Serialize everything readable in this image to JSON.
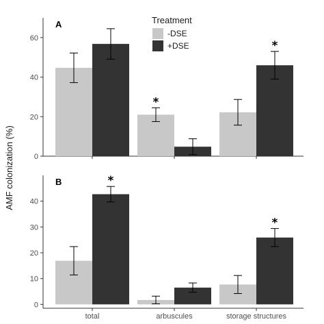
{
  "ylabel": "AMF colonization (%)",
  "legend": {
    "title": "Treatment",
    "entries": [
      {
        "label": "-DSE",
        "color": "#c8c8c8"
      },
      {
        "label": "+DSE",
        "color": "#333333"
      }
    ]
  },
  "chart_data": [
    {
      "type": "bar",
      "panel": "A",
      "categories": [
        "total",
        "arbuscules",
        "storage structures"
      ],
      "series": [
        {
          "name": "-DSE",
          "color": "#c8c8c8",
          "values": [
            44.7,
            21.0,
            22.2
          ],
          "errors": [
            7.5,
            3.5,
            6.5
          ]
        },
        {
          "name": "+DSE",
          "color": "#333333",
          "values": [
            56.8,
            4.8,
            46.0
          ],
          "errors": [
            7.7,
            4.0,
            7.0
          ]
        }
      ],
      "significance": [
        {
          "category": "arbuscules",
          "series": "-DSE",
          "label": "*"
        },
        {
          "category": "storage structures",
          "series": "+DSE",
          "label": "*"
        }
      ],
      "ylim": [
        0,
        70
      ],
      "yticks": [
        0,
        20,
        40,
        60
      ]
    },
    {
      "type": "bar",
      "panel": "B",
      "categories": [
        "total",
        "arbuscules",
        "storage structures"
      ],
      "series": [
        {
          "name": "-DSE",
          "color": "#c8c8c8",
          "values": [
            16.9,
            1.7,
            7.7
          ],
          "errors": [
            5.5,
            1.5,
            3.5
          ]
        },
        {
          "name": "+DSE",
          "color": "#333333",
          "values": [
            42.7,
            6.5,
            25.9
          ],
          "errors": [
            3.0,
            1.8,
            3.5
          ]
        }
      ],
      "significance": [
        {
          "category": "total",
          "series": "+DSE",
          "label": "*"
        },
        {
          "category": "storage structures",
          "series": "+DSE",
          "label": "*"
        }
      ],
      "ylim": [
        -1.5,
        50
      ],
      "yticks": [
        0,
        10,
        20,
        30,
        40
      ]
    }
  ]
}
